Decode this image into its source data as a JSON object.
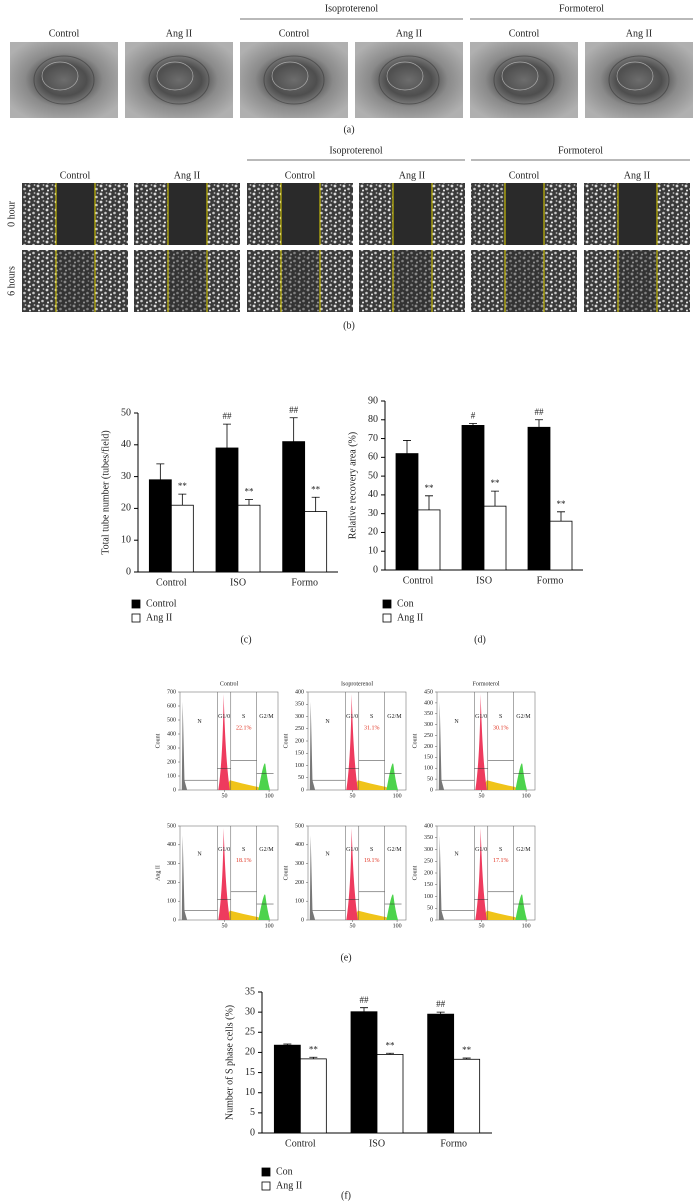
{
  "figure": {
    "panel_a": {
      "label": "(a)",
      "groups": [
        "Isoproterenol",
        "Formoterol"
      ],
      "columns": [
        "Control",
        "Ang II",
        "Control",
        "Ang II",
        "Control",
        "Ang II"
      ]
    },
    "panel_b": {
      "label": "(b)",
      "groups": [
        "Isoproterenol",
        "Formoterol"
      ],
      "columns": [
        "Control",
        "Ang II",
        "Control",
        "Ang II",
        "Control",
        "Ang II"
      ],
      "rows": [
        "0 hour",
        "6 hours"
      ]
    },
    "panel_e": {
      "label": "(e)"
    }
  },
  "chart_data": [
    {
      "type": "bar",
      "label": "(c)",
      "ylabel": "Total tube number (tubes/field)",
      "categories": [
        "Control",
        "ISO",
        "Formo"
      ],
      "series": [
        {
          "name": "Control",
          "color": "#000000",
          "values": [
            29,
            39,
            41
          ],
          "errors": [
            5,
            7.5,
            7.5
          ],
          "annotations": [
            null,
            "##",
            "##"
          ]
        },
        {
          "name": "Ang II",
          "color": "#ffffff",
          "values": [
            21,
            21,
            19
          ],
          "errors": [
            3.5,
            1.8,
            4.5
          ],
          "annotations": [
            "**",
            "**",
            "**"
          ]
        }
      ],
      "ylim": [
        0,
        50
      ],
      "yticks": [
        0,
        10,
        20,
        30,
        40,
        50
      ]
    },
    {
      "type": "bar",
      "label": "(d)",
      "ylabel": "Relative recovery area (%)",
      "categories": [
        "Control",
        "ISO",
        "Formo"
      ],
      "series": [
        {
          "name": "Con",
          "color": "#000000",
          "values": [
            62,
            77,
            76
          ],
          "errors": [
            7,
            1,
            4
          ],
          "annotations": [
            null,
            "#",
            "##"
          ]
        },
        {
          "name": "Ang II",
          "color": "#ffffff",
          "values": [
            32,
            34,
            26
          ],
          "errors": [
            7.5,
            8,
            5
          ],
          "annotations": [
            "**",
            "**",
            "**"
          ]
        }
      ],
      "ylim": [
        0,
        90
      ],
      "yticks": [
        0,
        10,
        20,
        30,
        40,
        50,
        60,
        70,
        80,
        90
      ]
    },
    {
      "type": "flow",
      "title": "Control",
      "ylabel": "Count",
      "ylim": [
        0,
        700
      ],
      "yticks": [
        0,
        100,
        200,
        300,
        400,
        500,
        600,
        700
      ],
      "xlim": [
        0,
        110
      ],
      "xticks": [
        50,
        100
      ],
      "regions": [
        "N",
        "G1/0",
        "S",
        "G2/M"
      ],
      "s_percent": "22.1%"
    },
    {
      "type": "flow",
      "title": "Isoproterenol",
      "ylabel": "Count",
      "ylim": [
        0,
        400
      ],
      "yticks": [
        0,
        50,
        100,
        150,
        200,
        250,
        300,
        350,
        400
      ],
      "xlim": [
        0,
        110
      ],
      "xticks": [
        50,
        100
      ],
      "regions": [
        "N",
        "G1/0",
        "S",
        "G2/M"
      ],
      "s_percent": "31.1%"
    },
    {
      "type": "flow",
      "title": "Formoterol",
      "ylabel": "Count",
      "ylim": [
        0,
        450
      ],
      "yticks": [
        0,
        50,
        100,
        150,
        200,
        250,
        300,
        350,
        400,
        450
      ],
      "xlim": [
        0,
        110
      ],
      "xticks": [
        50,
        100
      ],
      "regions": [
        "N",
        "G1/0",
        "S",
        "G2/M"
      ],
      "s_percent": "30.1%"
    },
    {
      "type": "flow",
      "ylabel": "Ang II",
      "ylim": [
        0,
        500
      ],
      "yticks": [
        0,
        100,
        200,
        300,
        400,
        500
      ],
      "xlim": [
        0,
        110
      ],
      "xticks": [
        50,
        100
      ],
      "regions": [
        "N",
        "G1/0",
        "S",
        "G2/M"
      ],
      "s_percent": "18.1%"
    },
    {
      "type": "flow",
      "ylabel": "Count",
      "ylim": [
        0,
        500
      ],
      "yticks": [
        0,
        100,
        200,
        300,
        400,
        500
      ],
      "xlim": [
        0,
        110
      ],
      "xticks": [
        50,
        100
      ],
      "regions": [
        "N",
        "G1/0",
        "S",
        "G2/M"
      ],
      "s_percent": "19.1%"
    },
    {
      "type": "flow",
      "ylabel": "Count",
      "ylim": [
        0,
        400
      ],
      "yticks": [
        0,
        50,
        100,
        150,
        200,
        250,
        300,
        350,
        400
      ],
      "xlim": [
        0,
        110
      ],
      "xticks": [
        50,
        100
      ],
      "regions": [
        "N",
        "G1/0",
        "S",
        "G2/M"
      ],
      "s_percent": "17.1%"
    },
    {
      "type": "bar",
      "label": "(f)",
      "ylabel": "Number of S phase cells (%)",
      "categories": [
        "Control",
        "ISO",
        "Formo"
      ],
      "series": [
        {
          "name": "Con",
          "color": "#000000",
          "values": [
            21.8,
            30.1,
            29.5
          ],
          "errors": [
            0.3,
            1,
            0.5
          ],
          "annotations": [
            null,
            "##",
            "##"
          ]
        },
        {
          "name": "Ang II",
          "color": "#ffffff",
          "values": [
            18.4,
            19.5,
            18.3
          ],
          "errors": [
            0.4,
            0.3,
            0.3
          ],
          "annotations": [
            "**",
            "**",
            "**"
          ]
        }
      ],
      "ylim": [
        0,
        35
      ],
      "yticks": [
        0,
        5,
        10,
        15,
        20,
        25,
        30,
        35
      ]
    }
  ]
}
